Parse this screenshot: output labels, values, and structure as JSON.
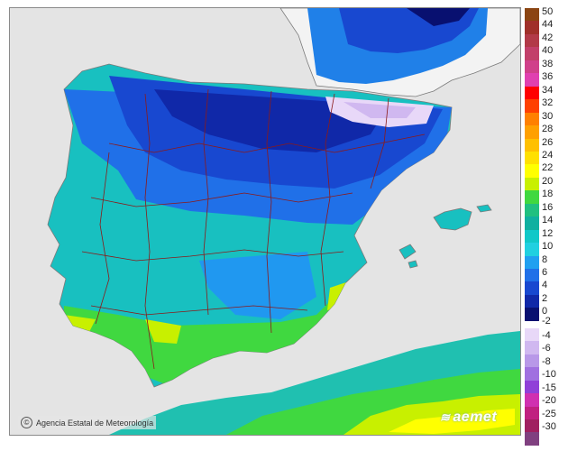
{
  "map": {
    "credit_text": "Agencia Estatal de Meteorología",
    "credit_icon": "copyright-icon",
    "brand_text": "aemet",
    "brand_icon": "aemet-logo-icon",
    "colors": {
      "sea": "#e4e4e4",
      "land_outside": "#f3f3f3",
      "coast": "#7a7a7a",
      "borders": "#8b1a1a"
    }
  },
  "legend": {
    "labels": [
      "50",
      "44",
      "42",
      "40",
      "38",
      "36",
      "34",
      "32",
      "30",
      "28",
      "26",
      "24",
      "22",
      "20",
      "18",
      "16",
      "14",
      "12",
      "10",
      "8",
      "6",
      "4",
      "2",
      "0",
      "-2",
      "-4",
      "-6",
      "-8",
      "-10",
      "-15",
      "-20",
      "-25",
      "-30"
    ],
    "positive_colors": [
      "#8b4513",
      "#a0302a",
      "#b23a48",
      "#c2406a",
      "#d0408a",
      "#e040b0",
      "#ff0000",
      "#ff4000",
      "#ff8000",
      "#ffa000",
      "#ffc000",
      "#ffe000",
      "#ffff00",
      "#c8f000",
      "#40d840",
      "#20c080",
      "#10b0a0",
      "#10c8c8",
      "#20d0e0",
      "#20a0f0",
      "#2070e8",
      "#1848d0",
      "#1028a8",
      "#081070"
    ],
    "negative_colors": [
      "#e8d8f8",
      "#d0b8f0",
      "#b898e8",
      "#a070e0",
      "#9040d8",
      "#d030b0",
      "#c02080",
      "#a02060",
      "#804080"
    ]
  }
}
